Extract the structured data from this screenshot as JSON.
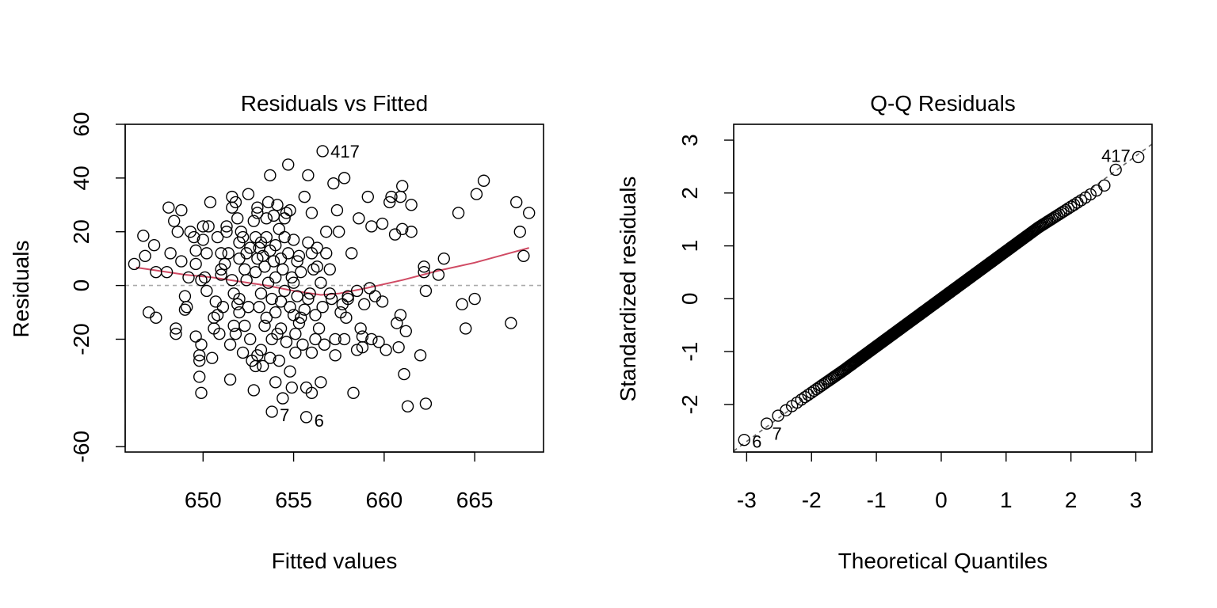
{
  "chart_data": [
    {
      "type": "scatter",
      "title": "Residuals vs Fitted",
      "xlabel": "Fitted values",
      "ylabel": "Residuals",
      "xlim": [
        645.7,
        668.8
      ],
      "ylim": [
        -62,
        60
      ],
      "xticks": [
        650,
        655,
        660,
        665
      ],
      "yticks": [
        -60,
        -20,
        0,
        20,
        40,
        60
      ],
      "grid": false,
      "reference_line": {
        "y": 0,
        "style": "dashed",
        "color": "#aaaaaa"
      },
      "smooth_line": {
        "color": "#d04a63",
        "points": [
          [
            646.3,
            6.7
          ],
          [
            647.5,
            5.5
          ],
          [
            649,
            4
          ],
          [
            650.5,
            3
          ],
          [
            652,
            1.5
          ],
          [
            653.5,
            0
          ],
          [
            655,
            -2
          ],
          [
            656.5,
            -3.5
          ],
          [
            657.5,
            -3
          ],
          [
            659,
            -1
          ],
          [
            661,
            2
          ],
          [
            663,
            5.5
          ],
          [
            665,
            8.5
          ],
          [
            668,
            14
          ]
        ]
      },
      "points": [
        [
          646.2,
          8
        ],
        [
          646.7,
          18.5
        ],
        [
          646.8,
          11
        ],
        [
          647,
          -10
        ],
        [
          647.3,
          15
        ],
        [
          647.4,
          5
        ],
        [
          647.4,
          -12
        ],
        [
          648,
          5
        ],
        [
          648.1,
          29
        ],
        [
          648.2,
          12
        ],
        [
          648.4,
          24
        ],
        [
          648.5,
          -16
        ],
        [
          648.5,
          -18
        ],
        [
          648.6,
          20
        ],
        [
          648.8,
          28
        ],
        [
          648.8,
          9
        ],
        [
          649,
          -4
        ],
        [
          649,
          -9
        ],
        [
          649.1,
          -8
        ],
        [
          649.2,
          3
        ],
        [
          649.3,
          20
        ],
        [
          649.5,
          18
        ],
        [
          649.6,
          8
        ],
        [
          649.6,
          13
        ],
        [
          649.6,
          -19
        ],
        [
          649.8,
          -26
        ],
        [
          649.8,
          -28
        ],
        [
          649.8,
          -34
        ],
        [
          649.9,
          -40
        ],
        [
          649.9,
          -22
        ],
        [
          649.9,
          2
        ],
        [
          650,
          17
        ],
        [
          650,
          22
        ],
        [
          650.1,
          3
        ],
        [
          650.2,
          12
        ],
        [
          650.2,
          -2
        ],
        [
          650.3,
          22
        ],
        [
          650.4,
          31
        ],
        [
          650.5,
          -27
        ],
        [
          650.6,
          -12
        ],
        [
          650.6,
          -16
        ],
        [
          650.7,
          -6
        ],
        [
          650.8,
          18
        ],
        [
          650.8,
          -11
        ],
        [
          650.9,
          -18
        ],
        [
          651,
          6
        ],
        [
          651,
          4
        ],
        [
          651,
          12
        ],
        [
          651.1,
          -8
        ],
        [
          651.2,
          8
        ],
        [
          651.3,
          20
        ],
        [
          651.3,
          22
        ],
        [
          651.4,
          12
        ],
        [
          651.5,
          -22
        ],
        [
          651.5,
          -35
        ],
        [
          651.6,
          33
        ],
        [
          651.6,
          29
        ],
        [
          651.6,
          2
        ],
        [
          651.7,
          -3
        ],
        [
          651.7,
          -15
        ],
        [
          651.8,
          31
        ],
        [
          651.8,
          -18
        ],
        [
          651.9,
          25
        ],
        [
          651.9,
          -7
        ],
        [
          652,
          10
        ],
        [
          652,
          16
        ],
        [
          652,
          -5
        ],
        [
          652,
          -10
        ],
        [
          652.1,
          20
        ],
        [
          652.2,
          -25
        ],
        [
          652.2,
          18
        ],
        [
          652.3,
          6
        ],
        [
          652.3,
          -15
        ],
        [
          652.4,
          12
        ],
        [
          652.4,
          2
        ],
        [
          652.5,
          34
        ],
        [
          652.5,
          -8
        ],
        [
          652.6,
          14
        ],
        [
          652.6,
          -20
        ],
        [
          652.7,
          -28
        ],
        [
          652.8,
          24
        ],
        [
          652.8,
          -39
        ],
        [
          652.9,
          18
        ],
        [
          652.9,
          5
        ],
        [
          652.9,
          -30
        ],
        [
          653,
          10
        ],
        [
          653,
          27
        ],
        [
          653,
          29
        ],
        [
          653,
          -26
        ],
        [
          653.1,
          -8
        ],
        [
          653.1,
          14
        ],
        [
          653.2,
          16
        ],
        [
          653.2,
          -3
        ],
        [
          653.2,
          -24
        ],
        [
          653.3,
          -30
        ],
        [
          653.3,
          11
        ],
        [
          653.4,
          7
        ],
        [
          653.4,
          -15
        ],
        [
          653.5,
          18
        ],
        [
          653.5,
          25
        ],
        [
          653.5,
          -12
        ],
        [
          653.6,
          1
        ],
        [
          653.6,
          31
        ],
        [
          653.7,
          41
        ],
        [
          653.7,
          13
        ],
        [
          653.7,
          -27
        ],
        [
          653.8,
          -47
        ],
        [
          653.8,
          -20
        ],
        [
          653.8,
          -5
        ],
        [
          653.9,
          26
        ],
        [
          653.9,
          9
        ],
        [
          654,
          -10
        ],
        [
          654,
          15
        ],
        [
          654,
          3
        ],
        [
          654,
          -36
        ],
        [
          654.1,
          30
        ],
        [
          654.1,
          -18
        ],
        [
          654.2,
          21
        ],
        [
          654.2,
          -28
        ],
        [
          654.3,
          10
        ],
        [
          654.3,
          -6
        ],
        [
          654.3,
          -16
        ],
        [
          654.4,
          -42
        ],
        [
          654.4,
          6
        ],
        [
          654.5,
          18
        ],
        [
          654.5,
          25
        ],
        [
          654.5,
          -2
        ],
        [
          654.6,
          27
        ],
        [
          654.6,
          -21
        ],
        [
          654.7,
          45
        ],
        [
          654.7,
          12
        ],
        [
          654.8,
          -32
        ],
        [
          654.8,
          -8
        ],
        [
          654.8,
          28
        ],
        [
          654.9,
          -38
        ],
        [
          654.9,
          3
        ],
        [
          655,
          1
        ],
        [
          655,
          -11
        ],
        [
          655,
          17
        ],
        [
          655.1,
          -18
        ],
        [
          655.1,
          -25
        ],
        [
          655.2,
          9
        ],
        [
          655.2,
          -4
        ],
        [
          655.3,
          -14
        ],
        [
          655.3,
          11
        ],
        [
          655.4,
          5
        ],
        [
          655.4,
          -12
        ],
        [
          655.5,
          -22
        ],
        [
          655.6,
          33
        ],
        [
          655.6,
          -9
        ],
        [
          655.7,
          -49
        ],
        [
          655.7,
          -38
        ],
        [
          655.8,
          41
        ],
        [
          655.8,
          16
        ],
        [
          655.8,
          -5
        ],
        [
          655.9,
          -3
        ],
        [
          656,
          27
        ],
        [
          656,
          12
        ],
        [
          656,
          -25
        ],
        [
          656,
          -40
        ],
        [
          656.1,
          6
        ],
        [
          656.2,
          -20
        ],
        [
          656.2,
          -11
        ],
        [
          656.3,
          14
        ],
        [
          656.3,
          7
        ],
        [
          656.4,
          -16
        ],
        [
          656.5,
          -36
        ],
        [
          656.5,
          1
        ],
        [
          656.6,
          50
        ],
        [
          656.6,
          -8
        ],
        [
          656.7,
          -22
        ],
        [
          656.8,
          20
        ],
        [
          656.8,
          12
        ],
        [
          657,
          -3
        ],
        [
          657,
          6
        ],
        [
          657.1,
          -5
        ],
        [
          657.2,
          38
        ],
        [
          657.3,
          -20
        ],
        [
          657.3,
          -26
        ],
        [
          657.4,
          28
        ],
        [
          657.5,
          20
        ],
        [
          657.6,
          -10
        ],
        [
          657.7,
          -7
        ],
        [
          657.8,
          40
        ],
        [
          657.8,
          -20
        ],
        [
          657.9,
          -12
        ],
        [
          658,
          -4
        ],
        [
          658,
          -5
        ],
        [
          658.2,
          12
        ],
        [
          658.3,
          -40
        ],
        [
          658.5,
          -2
        ],
        [
          658.5,
          -24
        ],
        [
          658.6,
          25
        ],
        [
          658.7,
          -16
        ],
        [
          658.8,
          -19
        ],
        [
          658.8,
          -23
        ],
        [
          658.9,
          -7
        ],
        [
          659.1,
          33
        ],
        [
          659.2,
          -1
        ],
        [
          659.3,
          -20
        ],
        [
          659.3,
          22
        ],
        [
          659.5,
          -4
        ],
        [
          659.7,
          -21
        ],
        [
          659.9,
          -6
        ],
        [
          659.9,
          23
        ],
        [
          660.1,
          -24
        ],
        [
          660.3,
          31
        ],
        [
          660.4,
          33
        ],
        [
          660.6,
          19
        ],
        [
          660.7,
          -14
        ],
        [
          660.8,
          -23
        ],
        [
          660.9,
          33
        ],
        [
          660.9,
          -11
        ],
        [
          661,
          37
        ],
        [
          661,
          21
        ],
        [
          661.1,
          -33
        ],
        [
          661.2,
          -17
        ],
        [
          661.3,
          -45
        ],
        [
          661.5,
          20
        ],
        [
          661.5,
          30
        ],
        [
          662,
          -26
        ],
        [
          662.2,
          7
        ],
        [
          662.2,
          5
        ],
        [
          662.3,
          -2
        ],
        [
          662.3,
          -44
        ],
        [
          663,
          4
        ],
        [
          663.3,
          10
        ],
        [
          664.1,
          27
        ],
        [
          664.3,
          -7
        ],
        [
          664.5,
          -16
        ],
        [
          665,
          -5
        ],
        [
          665.1,
          34
        ],
        [
          665.5,
          39
        ],
        [
          667,
          -14
        ],
        [
          667.3,
          31
        ],
        [
          667.5,
          20
        ],
        [
          667.7,
          11
        ],
        [
          668,
          27
        ]
      ],
      "point_labels": [
        {
          "text": "417",
          "x": 656.6,
          "y": 50
        },
        {
          "text": "7",
          "x": 653.8,
          "y": -47
        },
        {
          "text": "6",
          "x": 655.7,
          "y": -49
        }
      ]
    },
    {
      "type": "scatter",
      "title": "Q-Q Residuals",
      "xlabel": "Theoretical Quantiles",
      "ylabel": "Standardized residuals",
      "xlim": [
        -3.2,
        3.25
      ],
      "ylim": [
        -2.9,
        3.3
      ],
      "xticks": [
        -3,
        -2,
        -1,
        0,
        1,
        2,
        3
      ],
      "yticks": [
        -2,
        -1,
        0,
        1,
        2,
        3
      ],
      "grid": false,
      "reference_line": {
        "slope": 0.9,
        "intercept": 0.0,
        "style": "dashed",
        "color": "#666666"
      },
      "point_labels": [
        {
          "text": "417",
          "x": 3.04,
          "y": 2.68
        },
        {
          "text": "6",
          "x": -3.04,
          "y": -2.67
        },
        {
          "text": "7",
          "x": -2.73,
          "y": -2.52
        }
      ]
    }
  ]
}
